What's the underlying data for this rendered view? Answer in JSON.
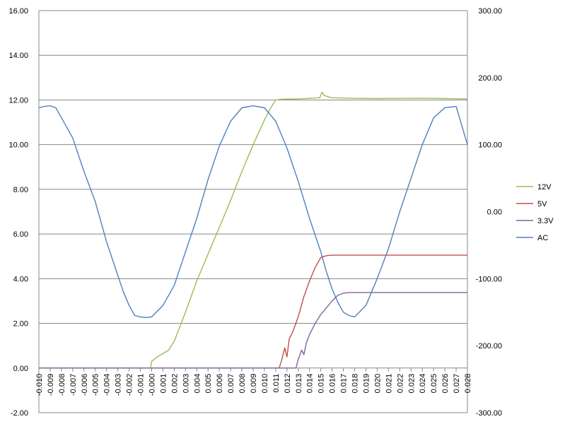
{
  "chart_data": {
    "type": "line",
    "title": "",
    "xlabel": "",
    "ylabel": "",
    "y2label": "",
    "grid": "horizontal",
    "legend_position": "right",
    "xlim": [
      -0.01,
      0.028
    ],
    "ylim": [
      -2.0,
      16.0
    ],
    "y2lim": [
      -300.0,
      300.0
    ],
    "x_ticks": [
      "-0.010",
      "-0.009",
      "-0.008",
      "-0.007",
      "-0.006",
      "-0.005",
      "-0.004",
      "-0.003",
      "-0.002",
      "-0.001",
      "-0.000",
      "0.001",
      "0.002",
      "0.003",
      "0.004",
      "0.005",
      "0.006",
      "0.007",
      "0.008",
      "0.009",
      "0.010",
      "0.011",
      "0.012",
      "0.013",
      "0.014",
      "0.015",
      "0.016",
      "0.017",
      "0.018",
      "0.019",
      "0.020",
      "0.021",
      "0.022",
      "0.023",
      "0.024",
      "0.025",
      "0.026",
      "0.027",
      "0.028"
    ],
    "y_ticks": [
      "-2.00",
      "0.00",
      "2.00",
      "4.00",
      "6.00",
      "8.00",
      "10.00",
      "12.00",
      "14.00",
      "16.00"
    ],
    "y2_ticks": [
      "-300.00",
      "-200.00",
      "-100.00",
      "0.00",
      "100.00",
      "200.00",
      "300.00"
    ],
    "series": [
      {
        "name": "12V",
        "color": "#9bbb59",
        "axis": "left",
        "x": [
          -0.01,
          -0.0001,
          0.0,
          0.0005,
          0.0015,
          0.002,
          0.003,
          0.004,
          0.005,
          0.006,
          0.007,
          0.008,
          0.009,
          0.01,
          0.0105,
          0.011,
          0.0115,
          0.013,
          0.014,
          0.0149,
          0.0151,
          0.0153,
          0.0158,
          0.016,
          0.018,
          0.02,
          0.022,
          0.024,
          0.026,
          0.028
        ],
        "values": [
          0.0,
          0.0,
          0.3,
          0.5,
          0.8,
          1.2,
          2.5,
          3.9,
          5.1,
          6.3,
          7.5,
          8.8,
          10.0,
          11.1,
          11.6,
          12.0,
          12.03,
          12.05,
          12.07,
          12.1,
          12.35,
          12.2,
          12.12,
          12.1,
          12.07,
          12.06,
          12.07,
          12.08,
          12.06,
          12.05
        ]
      },
      {
        "name": "5V",
        "color": "#c0504d",
        "axis": "left",
        "x": [
          -0.01,
          0.0113,
          0.0115,
          0.0118,
          0.012,
          0.0122,
          0.0125,
          0.013,
          0.0135,
          0.014,
          0.0145,
          0.015,
          0.0155,
          0.016,
          0.017,
          0.018,
          0.02,
          0.022,
          0.024,
          0.026,
          0.028
        ],
        "values": [
          0.0,
          0.0,
          0.3,
          0.9,
          0.5,
          1.3,
          1.6,
          2.3,
          3.2,
          3.9,
          4.5,
          4.95,
          5.03,
          5.05,
          5.05,
          5.05,
          5.05,
          5.05,
          5.05,
          5.05,
          5.05
        ]
      },
      {
        "name": "3.3V",
        "color": "#8064a2",
        "axis": "left",
        "x": [
          -0.01,
          0.0128,
          0.013,
          0.0133,
          0.0135,
          0.0137,
          0.014,
          0.0145,
          0.015,
          0.0155,
          0.016,
          0.0165,
          0.017,
          0.0175,
          0.018,
          0.02,
          0.022,
          0.024,
          0.026,
          0.028
        ],
        "values": [
          0.0,
          0.0,
          0.4,
          0.8,
          0.6,
          1.1,
          1.5,
          2.0,
          2.4,
          2.7,
          3.0,
          3.25,
          3.35,
          3.38,
          3.38,
          3.38,
          3.38,
          3.38,
          3.38,
          3.38
        ]
      },
      {
        "name": "AC",
        "color": "#4f81bd",
        "axis": "right",
        "x": [
          -0.01,
          -0.0095,
          -0.009,
          -0.0085,
          -0.008,
          -0.007,
          -0.006,
          -0.005,
          -0.004,
          -0.003,
          -0.0025,
          -0.002,
          -0.0015,
          -0.001,
          -0.0005,
          0.0,
          0.001,
          0.002,
          0.003,
          0.004,
          0.005,
          0.006,
          0.007,
          0.008,
          0.009,
          0.01,
          0.011,
          0.012,
          0.013,
          0.014,
          0.015,
          0.0155,
          0.016,
          0.0165,
          0.017,
          0.0175,
          0.018,
          0.019,
          0.02,
          0.021,
          0.022,
          0.023,
          0.024,
          0.025,
          0.026,
          0.027,
          0.028
        ],
        "values": [
          155,
          157,
          158,
          155,
          140,
          110,
          60,
          15,
          -45,
          -95,
          -120,
          -140,
          -155,
          -157,
          -158,
          -157,
          -140,
          -110,
          -60,
          -10,
          48,
          98,
          135,
          155,
          158,
          155,
          135,
          95,
          45,
          -10,
          -60,
          -90,
          -115,
          -135,
          -150,
          -155,
          -157,
          -140,
          -100,
          -55,
          0,
          50,
          100,
          140,
          155,
          157,
          100
        ]
      }
    ]
  }
}
